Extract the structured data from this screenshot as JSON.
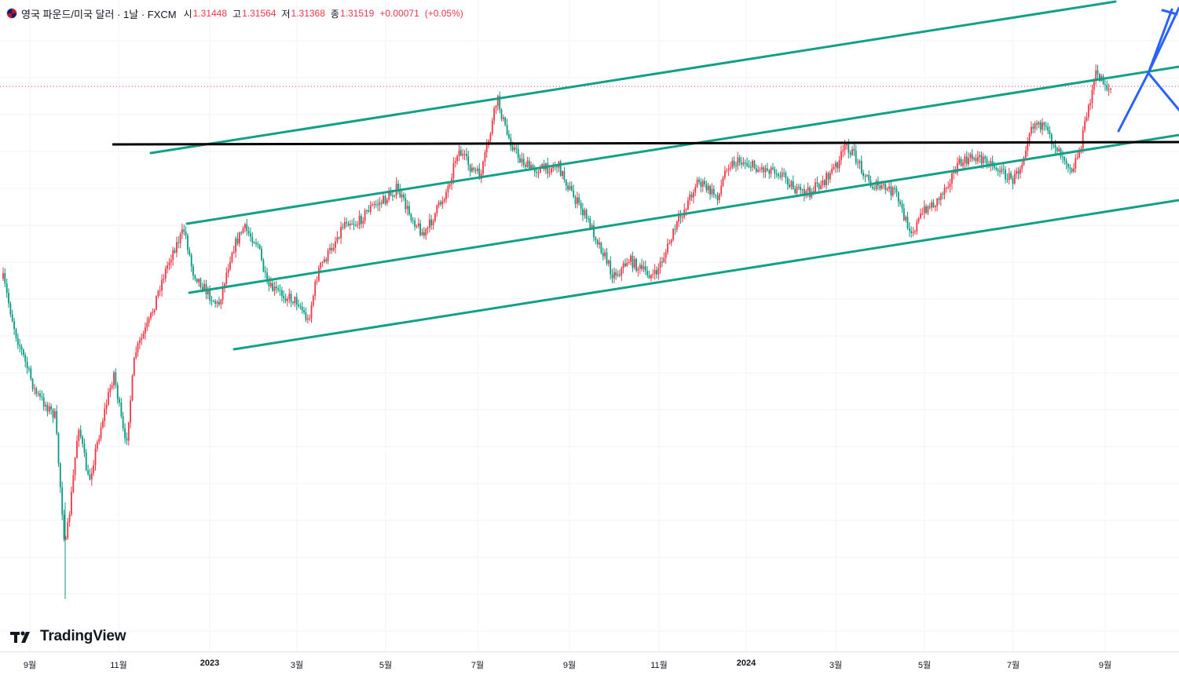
{
  "legend": {
    "symbol": "영국 파운드/미국 달러 · 1날 · FXCM",
    "open_label": "시",
    "open": "1.31448",
    "high_label": "고",
    "high": "1.31564",
    "low_label": "저",
    "low": "1.31368",
    "close_label": "종",
    "close": "1.31519",
    "change": "+0.00071",
    "change_pct": "(+0.05%)"
  },
  "x_axis": [
    {
      "label": "9월",
      "bold": false
    },
    {
      "label": "11월",
      "bold": false
    },
    {
      "label": "2023",
      "bold": true
    },
    {
      "label": "3월",
      "bold": false
    },
    {
      "label": "5월",
      "bold": false
    },
    {
      "label": "7월",
      "bold": false
    },
    {
      "label": "9월",
      "bold": false
    },
    {
      "label": "11월",
      "bold": false
    },
    {
      "label": "2024",
      "bold": true
    },
    {
      "label": "3월",
      "bold": false
    },
    {
      "label": "5월",
      "bold": false
    },
    {
      "label": "7월",
      "bold": false
    },
    {
      "label": "9월",
      "bold": false
    }
  ],
  "logo": {
    "text": "TradingView"
  },
  "colors": {
    "up": "#f23645",
    "down": "#089981",
    "channel": "#12a186",
    "horizontal": "#000000",
    "projection": "#2962ff"
  },
  "chart_data": {
    "type": "candlestick",
    "symbol": "GBP/USD",
    "interval": "1D",
    "x_ticks": [
      "9월",
      "11월",
      "2023",
      "3월",
      "5월",
      "7월",
      "9월",
      "11월",
      "2024",
      "3월",
      "5월",
      "7월",
      "9월"
    ],
    "last_close": 1.31519,
    "price_path_approx": [
      {
        "t": "2022-09",
        "close": 1.13
      },
      {
        "t": "2022-09-26",
        "close": 1.04
      },
      {
        "t": "2022-11",
        "close": 1.15
      },
      {
        "t": "2022-12",
        "close": 1.23
      },
      {
        "t": "2023-03",
        "close": 1.19
      },
      {
        "t": "2023-05",
        "close": 1.25
      },
      {
        "t": "2023-07",
        "close": 1.31
      },
      {
        "t": "2023-09",
        "close": 1.24
      },
      {
        "t": "2023-10",
        "close": 1.21
      },
      {
        "t": "2024-01",
        "close": 1.27
      },
      {
        "t": "2024-03",
        "close": 1.28
      },
      {
        "t": "2024-04",
        "close": 1.24
      },
      {
        "t": "2024-07",
        "close": 1.3
      },
      {
        "t": "2024-08",
        "close": 1.28
      },
      {
        "t": "2024-09",
        "close": 1.315
      }
    ],
    "drawings": [
      "ascending parallel channel (green)",
      "horizontal resistance line (black)",
      "projection zigzag (blue)"
    ],
    "grid": true
  }
}
